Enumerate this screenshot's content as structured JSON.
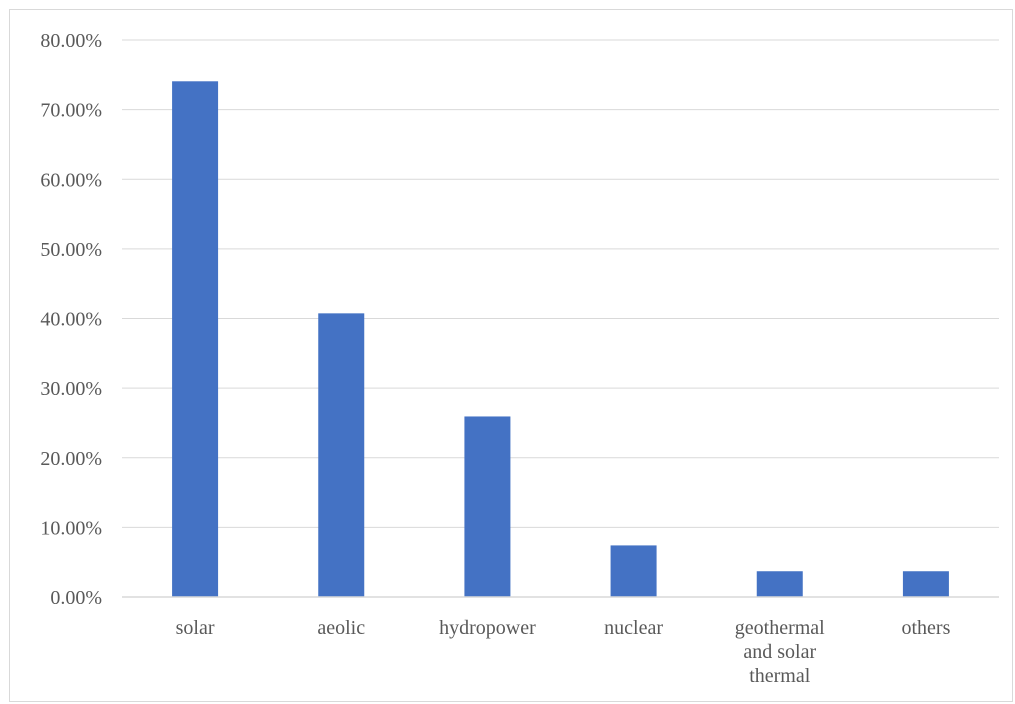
{
  "chart_data": {
    "type": "bar",
    "categories": [
      [
        "solar"
      ],
      [
        "aeolic"
      ],
      [
        "hydropower"
      ],
      [
        "nuclear"
      ],
      [
        "geothermal",
        "and solar",
        "thermal"
      ],
      [
        "others"
      ]
    ],
    "values": [
      74.07,
      40.74,
      25.93,
      7.41,
      3.7,
      3.7
    ],
    "y_ticks": [
      "0.00%",
      "10.00%",
      "20.00%",
      "30.00%",
      "40.00%",
      "50.00%",
      "60.00%",
      "70.00%",
      "80.00%"
    ],
    "ylim": [
      0,
      80
    ],
    "grid": true,
    "legend": "none",
    "title": "",
    "xlabel": "",
    "ylabel": "",
    "colors": {
      "bar": "#4472c4",
      "grid": "#d9d9d9",
      "axis": "#d9d9d9",
      "text": "#595959"
    }
  }
}
